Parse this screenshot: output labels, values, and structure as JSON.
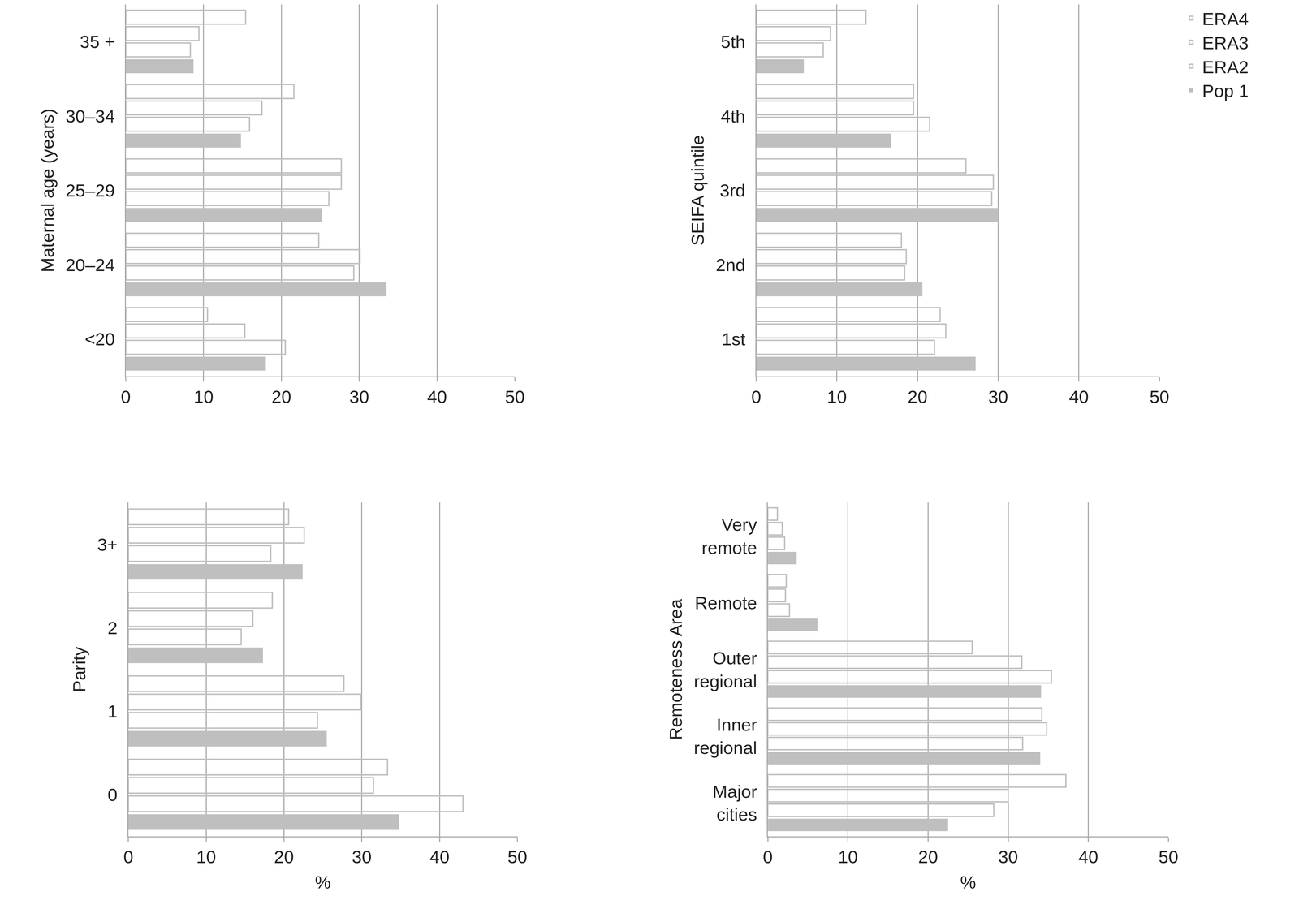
{
  "chart_data": [
    {
      "type": "bar",
      "orientation": "horizontal",
      "ylabel": "Maternal age (years)",
      "categories": [
        "<20",
        "20–24",
        "25–29",
        "30–34",
        "35 +"
      ],
      "series": [
        {
          "name": "Pop 1",
          "color": "#bfbfbf",
          "marker": "filled",
          "values": [
            18,
            33.5,
            25.2,
            14.8,
            8.7
          ]
        },
        {
          "name": "ERA2",
          "color": "#bfbfbf",
          "marker": "outline",
          "values": [
            20.5,
            29.3,
            26.1,
            15.9,
            8.3
          ]
        },
        {
          "name": "ERA3",
          "color": "#bfbfbf",
          "marker": "outline",
          "values": [
            15.3,
            30.1,
            27.7,
            17.5,
            9.4
          ]
        },
        {
          "name": "ERA4",
          "color": "#bfbfbf",
          "marker": "outline",
          "values": [
            10.5,
            24.8,
            27.7,
            21.6,
            15.4
          ]
        }
      ],
      "xlim": [
        0,
        50
      ],
      "xticks": [
        0,
        10,
        20,
        30,
        40,
        50
      ],
      "grid": true
    },
    {
      "type": "bar",
      "orientation": "horizontal",
      "ylabel": "SEIFA quintile",
      "legend": "right",
      "categories": [
        "1st",
        "2nd",
        "3rd",
        "4th",
        "5th"
      ],
      "series": [
        {
          "name": "Pop 1",
          "color": "#bfbfbf",
          "marker": "filled",
          "values": [
            27.2,
            20.6,
            30,
            16.7,
            5.9
          ]
        },
        {
          "name": "ERA2",
          "color": "#bfbfbf",
          "marker": "outline",
          "values": [
            22.1,
            18.4,
            29.2,
            21.5,
            8.3
          ]
        },
        {
          "name": "ERA3",
          "color": "#bfbfbf",
          "marker": "outline",
          "values": [
            23.5,
            18.6,
            29.4,
            19.5,
            9.2
          ]
        },
        {
          "name": "ERA4",
          "color": "#bfbfbf",
          "marker": "outline",
          "values": [
            22.8,
            18,
            26,
            19.5,
            13.6
          ]
        }
      ],
      "xlim": [
        0,
        50
      ],
      "xticks": [
        0,
        10,
        20,
        30,
        40,
        50
      ],
      "grid": true
    },
    {
      "type": "bar",
      "orientation": "horizontal",
      "ylabel": "Parity",
      "xlabel": "%",
      "categories": [
        "0",
        "1",
        "2",
        "3+"
      ],
      "series": [
        {
          "name": "Pop 1",
          "color": "#bfbfbf",
          "marker": "filled",
          "values": [
            34.8,
            25.5,
            17.3,
            22.4
          ]
        },
        {
          "name": "ERA2",
          "color": "#bfbfbf",
          "marker": "outline",
          "values": [
            43,
            24.3,
            14.5,
            18.3
          ]
        },
        {
          "name": "ERA3",
          "color": "#bfbfbf",
          "marker": "outline",
          "values": [
            31.5,
            29.9,
            16,
            22.6
          ]
        },
        {
          "name": "ERA4",
          "color": "#bfbfbf",
          "marker": "outline",
          "values": [
            33.3,
            27.7,
            18.5,
            20.6
          ]
        }
      ],
      "xlim": [
        0,
        50
      ],
      "xticks": [
        0,
        10,
        20,
        30,
        40,
        50
      ],
      "grid": true
    },
    {
      "type": "bar",
      "orientation": "horizontal",
      "ylabel": "Remoteness Area",
      "xlabel": "%",
      "categories": [
        "Major cities",
        "Inner regional",
        "Outer regional",
        "Remote",
        "Very remote"
      ],
      "series": [
        {
          "name": "Pop 1",
          "color": "#bfbfbf",
          "marker": "filled",
          "values": [
            22.5,
            34,
            34.1,
            6.2,
            3.6
          ]
        },
        {
          "name": "ERA2",
          "color": "#bfbfbf",
          "marker": "outline",
          "values": [
            28.2,
            31.8,
            35.4,
            2.7,
            2.1
          ]
        },
        {
          "name": "ERA3",
          "color": "#bfbfbf",
          "marker": "outline",
          "values": [
            30,
            34.8,
            31.7,
            2.2,
            1.8
          ]
        },
        {
          "name": "ERA4",
          "color": "#bfbfbf",
          "marker": "outline",
          "values": [
            37.2,
            34.2,
            25.5,
            2.3,
            1.2
          ]
        }
      ],
      "xlim": [
        0,
        50
      ],
      "xticks": [
        0,
        10,
        20,
        30,
        40,
        50
      ],
      "grid": true
    }
  ]
}
